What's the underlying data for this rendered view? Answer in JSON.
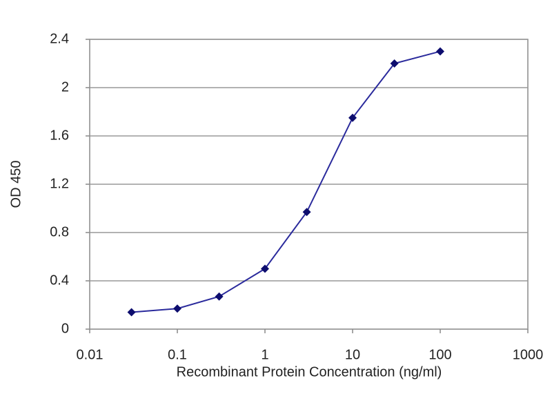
{
  "chart_data": {
    "type": "line",
    "x_label": "Recombinant Protein Concentration (ng/ml)",
    "y_label": "OD 450",
    "x": [
      0.03,
      0.1,
      0.3,
      1,
      3,
      10,
      30,
      100
    ],
    "series": [
      {
        "color": "#2a2a9c",
        "values": [
          0.14,
          0.17,
          0.27,
          0.5,
          0.97,
          1.75,
          2.2,
          2.3
        ]
      }
    ],
    "xscale": "log",
    "xlim": [
      0.01,
      1000
    ],
    "xticks": [
      0.01,
      0.1,
      1,
      10,
      100,
      1000
    ],
    "ylim": [
      0,
      2.4
    ],
    "yticks": [
      0,
      0.4,
      0.8,
      1.2,
      1.6,
      2,
      2.4
    ],
    "grid": true
  }
}
